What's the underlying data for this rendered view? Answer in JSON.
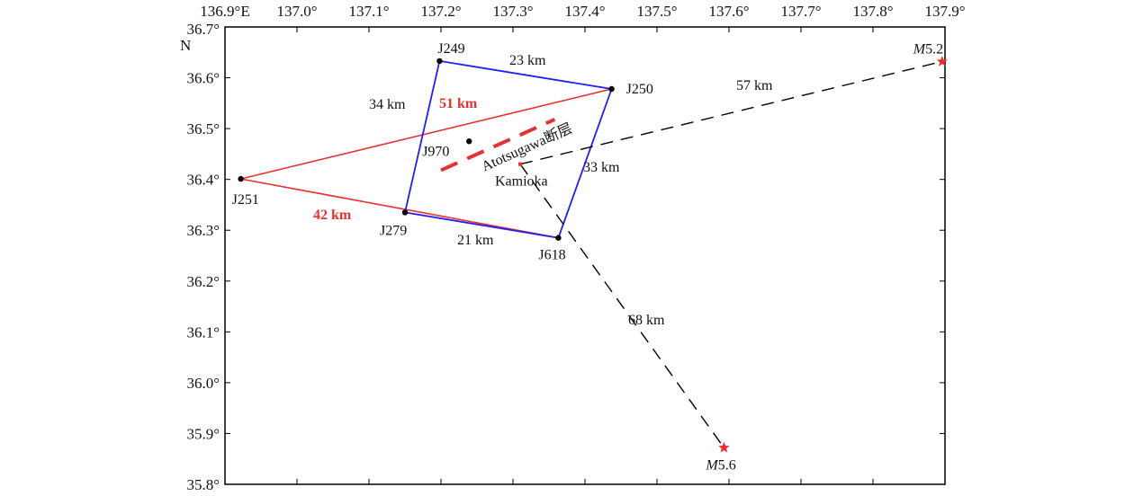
{
  "map": {
    "frame": {
      "lon_min": 136.9,
      "lon_max": 137.9,
      "lat_min": 35.8,
      "lat_max": 36.7
    },
    "lon_ticks": [
      {
        "value": 136.9,
        "label": "136.9°E"
      },
      {
        "value": 137.0,
        "label": "137.0°"
      },
      {
        "value": 137.1,
        "label": "137.1°"
      },
      {
        "value": 137.2,
        "label": "137.2°"
      },
      {
        "value": 137.3,
        "label": "137.3°"
      },
      {
        "value": 137.4,
        "label": "137.4°"
      },
      {
        "value": 137.5,
        "label": "137.5°"
      },
      {
        "value": 137.6,
        "label": "137.6°"
      },
      {
        "value": 137.7,
        "label": "137.7°"
      },
      {
        "value": 137.8,
        "label": "137.8°"
      },
      {
        "value": 137.9,
        "label": "137.9°"
      }
    ],
    "lat_ticks": [
      {
        "value": 36.7,
        "label": "36.7°"
      },
      {
        "value": 36.6,
        "label": "36.6°"
      },
      {
        "value": 36.5,
        "label": "36.5°"
      },
      {
        "value": 36.4,
        "label": "36.4°"
      },
      {
        "value": 36.3,
        "label": "36.3°"
      },
      {
        "value": 36.2,
        "label": "36.2°"
      },
      {
        "value": 36.1,
        "label": "36.1°"
      },
      {
        "value": 36.0,
        "label": "36.0°"
      },
      {
        "value": 35.9,
        "label": "35.9°"
      },
      {
        "value": 35.8,
        "label": "35.8°"
      }
    ],
    "north_label": "N",
    "stations": [
      {
        "id": "J249",
        "label": "J249",
        "lon": 137.198,
        "lat": 36.633
      },
      {
        "id": "J250",
        "label": "J250",
        "lon": 137.437,
        "lat": 36.578
      },
      {
        "id": "J251",
        "label": "J251",
        "lon": 136.922,
        "lat": 36.401
      },
      {
        "id": "J279",
        "label": "J279",
        "lon": 137.15,
        "lat": 36.335
      },
      {
        "id": "J618",
        "label": "J618",
        "lon": 137.363,
        "lat": 36.285
      },
      {
        "id": "J970",
        "label": "J970",
        "lon": 137.239,
        "lat": 36.475
      }
    ],
    "kamioka": {
      "label": "Kamioka",
      "lon": 137.31,
      "lat": 36.43
    },
    "earthquakes": [
      {
        "id": "eq1",
        "label": "M5.2",
        "label_italic": "M",
        "label_rest": "5.2",
        "lon": 137.896,
        "lat": 36.632
      },
      {
        "id": "eq2",
        "label": "M5.6",
        "label_italic": "M",
        "label_rest": "5.6",
        "lon": 137.593,
        "lat": 35.872
      }
    ],
    "blue_quad": {
      "color": "#2020f0",
      "vertices": [
        "J249",
        "J250",
        "J618",
        "J279"
      ],
      "side_labels": [
        "23 km",
        "33 km",
        "21 km",
        "34 km"
      ]
    },
    "red_triangle": {
      "color": "#e83030",
      "apex": "J251",
      "labels": [
        "51 km",
        "42 km"
      ]
    },
    "fault": {
      "label": "Atotsugawa断层",
      "color": "#e83030",
      "start": {
        "lon": 137.2,
        "lat": 36.418
      },
      "end": {
        "lon": 137.358,
        "lat": 36.518
      }
    },
    "dashed_lines": [
      {
        "to": "eq1",
        "label": "57 km"
      },
      {
        "to": "eq2",
        "label": "68 km"
      }
    ]
  }
}
